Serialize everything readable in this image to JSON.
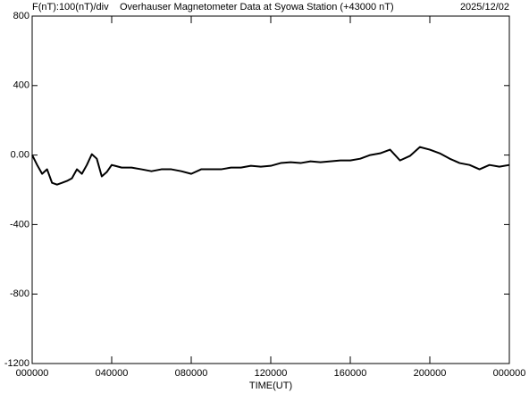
{
  "chart_data": {
    "type": "line",
    "subtitle": "F(nT):100(nT)/div",
    "title": "Overhauser Magnetometer Data at Syowa Station (+43000 nT)",
    "date": "2025/12/02",
    "xlabel": "TIME(UT)",
    "xlim": [
      0,
      24
    ],
    "xticks": [
      {
        "value": 0,
        "label": "000000"
      },
      {
        "value": 4,
        "label": "040000"
      },
      {
        "value": 8,
        "label": "080000"
      },
      {
        "value": 12,
        "label": "120000"
      },
      {
        "value": 16,
        "label": "160000"
      },
      {
        "value": 20,
        "label": "200000"
      },
      {
        "value": 24,
        "label": "000000"
      }
    ],
    "ylim": [
      -1200,
      800
    ],
    "yticks": [
      800,
      400,
      {
        "value": 0,
        "label": "0.00"
      },
      -400,
      -800,
      -1200
    ],
    "series": [
      {
        "color": "#000000",
        "x": [
          0,
          0.25,
          0.5,
          0.75,
          1,
          1.25,
          1.5,
          1.75,
          2,
          2.25,
          2.5,
          2.75,
          3,
          3.25,
          3.5,
          3.75,
          4,
          4.5,
          5,
          5.5,
          6,
          6.5,
          7,
          7.5,
          8,
          8.5,
          9,
          9.5,
          10,
          10.5,
          11,
          11.5,
          12,
          12.5,
          13,
          13.5,
          14,
          14.5,
          15,
          15.5,
          16,
          16.5,
          17,
          17.5,
          18,
          18.5,
          19,
          19.5,
          20,
          20.5,
          21,
          21.5,
          22,
          22.5,
          23,
          23.5,
          24
        ],
        "values": [
          0,
          -57,
          -108,
          -82,
          -160,
          -170,
          -160,
          -149,
          -134,
          -82,
          -108,
          -57,
          5,
          -21,
          -123,
          -98,
          -57,
          -72,
          -72,
          -82,
          -93,
          -82,
          -82,
          -93,
          -108,
          -82,
          -82,
          -82,
          -72,
          -72,
          -62,
          -67,
          -62,
          -46,
          -41,
          -46,
          -36,
          -41,
          -36,
          -31,
          -31,
          -21,
          0,
          10,
          31,
          -31,
          -5,
          46,
          31,
          10,
          -21,
          -46,
          -57,
          -82,
          -57,
          -67,
          -57
        ]
      }
    ]
  }
}
